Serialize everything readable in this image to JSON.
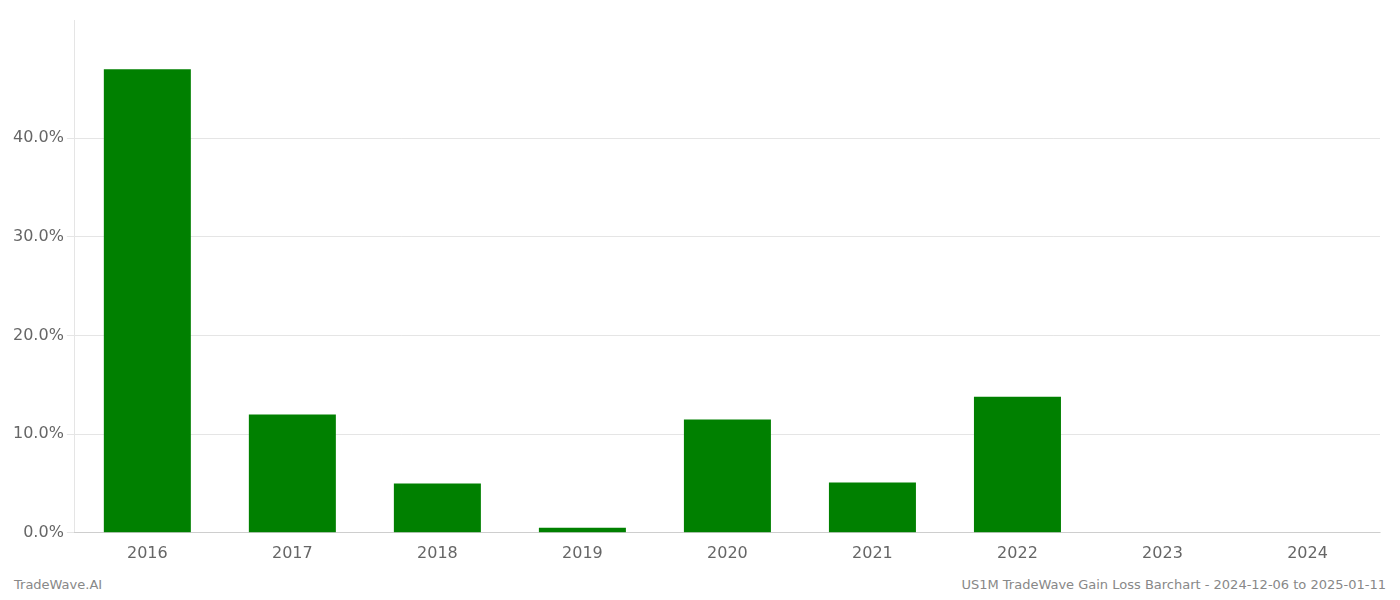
{
  "chart_data": {
    "type": "bar",
    "categories": [
      "2016",
      "2017",
      "2018",
      "2019",
      "2020",
      "2021",
      "2022",
      "2023",
      "2024"
    ],
    "values": [
      0.47,
      0.12,
      0.05,
      0.005,
      0.115,
      0.051,
      0.138,
      0.0005,
      0.0005
    ],
    "color": "#008000",
    "ylim": [
      0,
      0.52
    ],
    "yticks": [
      {
        "value": 0.0,
        "label": "0.0%"
      },
      {
        "value": 0.1,
        "label": "10.0%"
      },
      {
        "value": 0.2,
        "label": "20.0%"
      },
      {
        "value": 0.3,
        "label": "30.0%"
      },
      {
        "value": 0.4,
        "label": "40.0%"
      }
    ],
    "grid": true,
    "annotations": [
      "TradeWave.AI",
      "US1M TradeWave Gain Loss Barchart - 2024-12-06 to 2025-01-11"
    ]
  }
}
